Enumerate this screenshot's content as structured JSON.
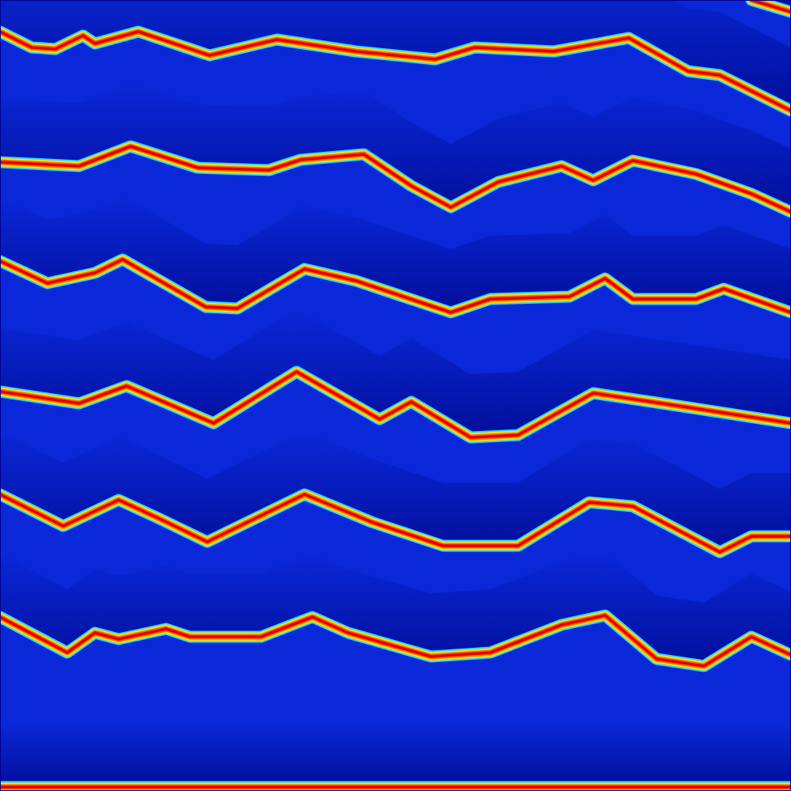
{
  "chart_data": {
    "type": "line",
    "xlim": [
      0,
      100
    ],
    "ylim": [
      0,
      100
    ],
    "tick_labels": false,
    "grid": false,
    "series": [
      {
        "x": [
          0,
          4,
          7,
          10.5,
          12,
          17.5,
          26.5,
          35,
          45,
          55,
          60,
          70,
          79.5,
          87,
          91,
          100
        ],
        "values": [
          96,
          94,
          93.8,
          95.5,
          94.5,
          96,
          93,
          95,
          93.5,
          92.5,
          94,
          93.5,
          95.2,
          91,
          90.5,
          86
        ],
        "color": "#e00000"
      },
      {
        "x": [
          95,
          100
        ],
        "values": [
          100,
          98.5
        ],
        "color": "#e00000"
      },
      {
        "x": [
          0,
          10,
          16.5,
          25,
          34,
          38,
          46,
          52,
          57,
          63,
          71,
          75,
          80,
          88,
          95,
          100
        ],
        "values": [
          79.5,
          79,
          81.5,
          78.8,
          78.5,
          79.8,
          80.5,
          76.5,
          73.8,
          77,
          79,
          77.2,
          79.7,
          78,
          75.5,
          73.2
        ],
        "color": "#e00000"
      },
      {
        "x": [
          0,
          6,
          12,
          15.5,
          26,
          30,
          38.5,
          45,
          57,
          62,
          72,
          76.5,
          80,
          88,
          91.5,
          100
        ],
        "values": [
          67,
          64.2,
          65.5,
          67.2,
          61.2,
          61,
          66,
          64.5,
          60.5,
          62.2,
          62.5,
          64.8,
          62.2,
          62.2,
          63.5,
          60.5
        ],
        "color": "#e00000"
      },
      {
        "x": [
          0,
          10,
          16,
          27,
          37.5,
          48,
          52,
          59.5,
          65.5,
          75,
          87,
          100
        ],
        "values": [
          50.5,
          49,
          51.2,
          46.5,
          53,
          47,
          49.2,
          44.7,
          45,
          50.3,
          48.5,
          46.5
        ],
        "color": "#e00000"
      },
      {
        "x": [
          0,
          8,
          15,
          20,
          26.2,
          38.5,
          47,
          56,
          65.5,
          74.5,
          80,
          91,
          95,
          100
        ],
        "values": [
          37.5,
          33.5,
          36.8,
          34.5,
          31.5,
          37.5,
          34,
          31,
          31,
          36.5,
          36,
          30.2,
          32.2,
          32.2
        ],
        "color": "#e00000"
      },
      {
        "x": [
          0,
          8.5,
          12,
          15,
          21,
          24,
          33,
          39.5,
          44,
          54.5,
          62,
          71,
          76.5,
          83,
          89,
          95,
          100
        ],
        "values": [
          22,
          17.5,
          20,
          19.2,
          20.5,
          19.5,
          19.5,
          22,
          20,
          17,
          17.5,
          21,
          22.2,
          16.7,
          15.8,
          19.5,
          17.2
        ],
        "color": "#e00000"
      },
      {
        "x": [
          0,
          100
        ],
        "values": [
          0.5,
          0.5
        ],
        "color": "#e00000"
      }
    ]
  }
}
